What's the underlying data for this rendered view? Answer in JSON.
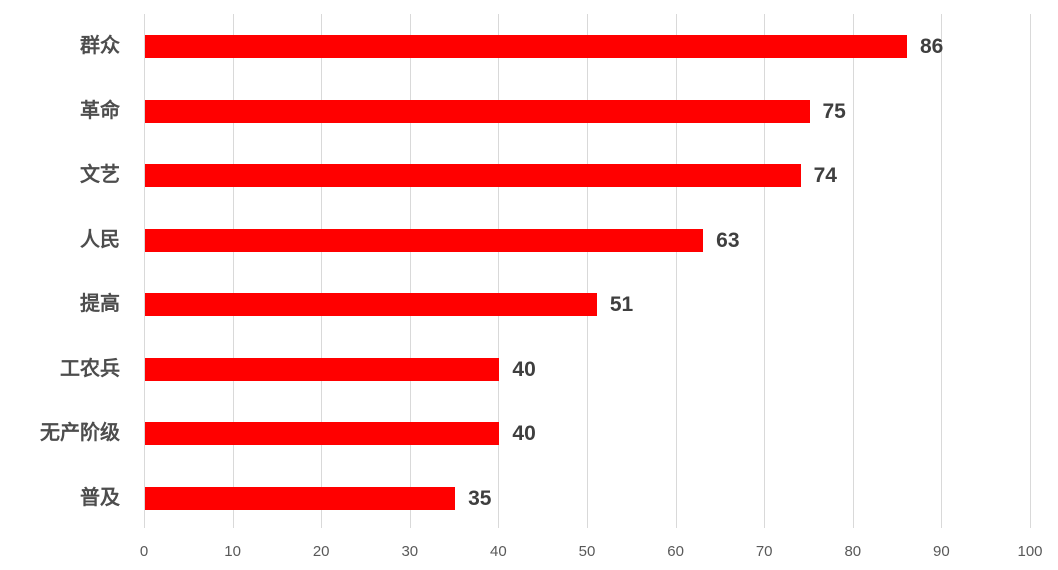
{
  "chart_data": {
    "type": "bar",
    "orientation": "horizontal",
    "title": "",
    "xlabel": "",
    "ylabel": "",
    "categories": [
      "群众",
      "革命",
      "文艺",
      "人民",
      "提高",
      "工农兵",
      "无产阶级",
      "普及"
    ],
    "values": [
      86,
      75,
      74,
      63,
      51,
      40,
      40,
      35
    ],
    "value_labels_shown": true,
    "xlim": [
      0,
      100
    ],
    "x_ticks": [
      0,
      10,
      20,
      30,
      40,
      50,
      60,
      70,
      80,
      90,
      100
    ],
    "grid": true,
    "legend": "none",
    "colors": {
      "bar": "#ff0000",
      "gridline": "#d9d9d9",
      "category_label": "#4d4d4d",
      "value_label": "#3f3f3f",
      "tick_label": "#595959",
      "background": "#ffffff"
    }
  }
}
